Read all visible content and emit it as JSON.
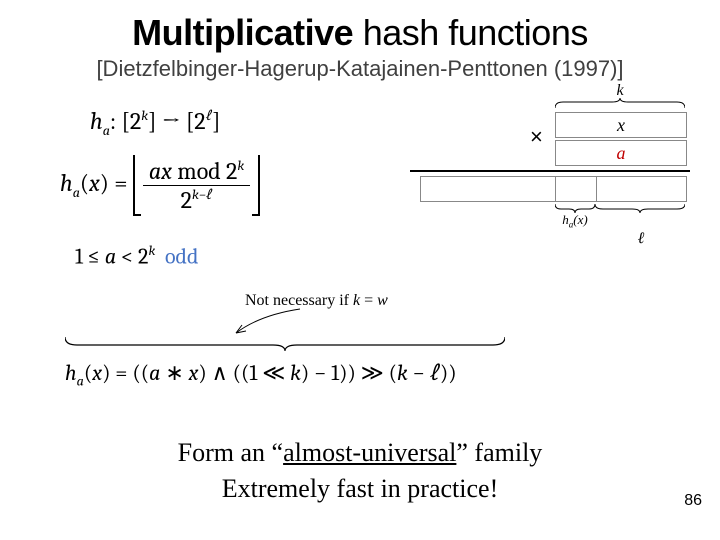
{
  "title": {
    "bold": "Multiplicative",
    "rest": " hash functions"
  },
  "citation": "[Dietzfelbinger-Hagerup-Katajainen-Penttonen (1997)]",
  "formula1_lhs": "h<sub>a</sub>: [2<sup>k</sup>] → [2<sup>ℓ</sup>]",
  "formula2_lhs": "h<sub>a</sub>(x) =",
  "formula2_num": "ax <span class='rm'>mod</span> 2<sup>k</sup>",
  "formula2_den": "2<sup>k−ℓ</sup>",
  "formula3": "1 ≤ a < 2<sup>k</sup> <span class='rm' style='color:#4472c4'>odd</span>",
  "note_text": "Not necessary if <i>k</i> = <i>w</i>",
  "diagram": {
    "k_label": "k",
    "x_label": "x",
    "a_label": "a",
    "a_color": "#c00000",
    "hax_label": "h<sub>a</sub>(x)",
    "ell_label": "ℓ",
    "times": "×"
  },
  "code_formula": "h<sub>a</sub>(x) = ((a ∗ x) <span class='rm'>∧</span> ((1 ≪ k) − 1)) ≫ (k − ℓ))",
  "footer1": "Form an \"almost-universal\" family",
  "footer2": "Extremely fast in practice!",
  "pagenum": "86",
  "colors": {
    "text": "#000000",
    "citation": "#404040",
    "odd": "#4472c4",
    "a": "#c00000",
    "bg": "#ffffff",
    "box_border": "#888888"
  }
}
